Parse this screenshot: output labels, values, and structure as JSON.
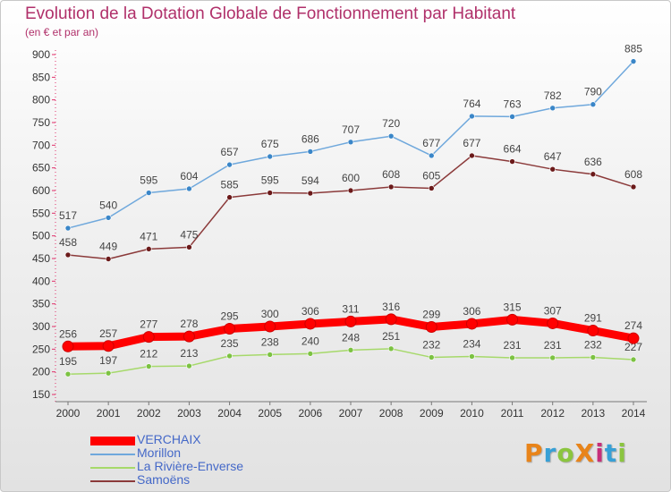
{
  "header": {
    "title": "Evolution de la Dotation Globale de Fonctionnement par Habitant",
    "subtitle": "(en € et par an)"
  },
  "brand": {
    "text": "ProXiti",
    "colors": [
      "#e8841a",
      "#37a0d6",
      "#8bc53f",
      "#e8841a",
      "#c62f7a",
      "#37a0d6",
      "#8bc53f"
    ]
  },
  "colors": {
    "title": "#b0306a",
    "axis_text": "#333333",
    "legend_text": "#4468c8"
  },
  "chart_data": {
    "type": "line",
    "x": [
      "2000",
      "2001",
      "2002",
      "2003",
      "2004",
      "2005",
      "2006",
      "2007",
      "2008",
      "2009",
      "2010",
      "2011",
      "2012",
      "2013",
      "2014"
    ],
    "ylim": [
      150,
      900
    ],
    "yticks": [
      150,
      200,
      250,
      300,
      350,
      400,
      450,
      500,
      550,
      600,
      650,
      700,
      750,
      800,
      850,
      900
    ],
    "grid": false,
    "legend_position": "bottom-left",
    "series": [
      {
        "name": "VERCHAIX",
        "color": "#ff0000",
        "values": [
          256,
          257,
          277,
          278,
          295,
          300,
          306,
          311,
          316,
          299,
          306,
          315,
          307,
          291,
          274
        ]
      },
      {
        "name": "Morillon",
        "color": "#6fa8dc",
        "marker": "#3a86c8",
        "values": [
          517,
          540,
          595,
          604,
          657,
          675,
          686,
          707,
          720,
          677,
          764,
          763,
          782,
          790,
          885
        ]
      },
      {
        "name": "La Rivière-Enverse",
        "color": "#a6d96a",
        "marker": "#7cc242",
        "values": [
          195,
          197,
          212,
          213,
          235,
          238,
          240,
          248,
          251,
          232,
          234,
          231,
          231,
          232,
          227
        ]
      },
      {
        "name": "Samoëns",
        "color": "#8b3a3a",
        "marker": "#6b1a1a",
        "values": [
          458,
          449,
          471,
          475,
          585,
          595,
          594,
          600,
          608,
          605,
          677,
          664,
          647,
          636,
          608
        ]
      }
    ]
  }
}
